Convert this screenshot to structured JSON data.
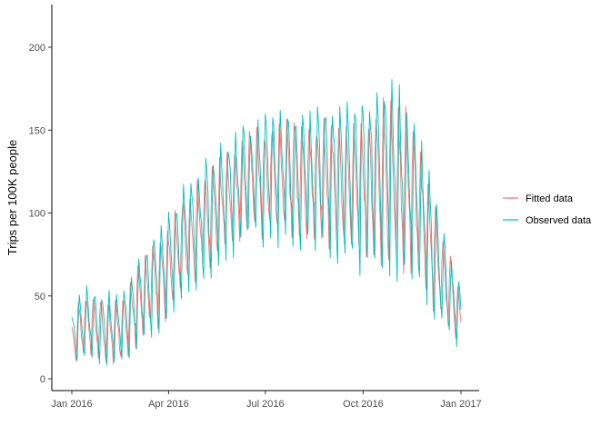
{
  "chart_data": {
    "type": "line",
    "title": "",
    "xlabel": "",
    "ylabel": "Trips per 100K people",
    "x_range": [
      "2016-01-01",
      "2017-01-01"
    ],
    "ylim": [
      -10,
      225
    ],
    "y_ticks": [
      0,
      50,
      100,
      150,
      200
    ],
    "x_ticks": [
      {
        "date": "2016-01-01",
        "label": "Jan 2016"
      },
      {
        "date": "2016-04-01",
        "label": "Apr 2016"
      },
      {
        "date": "2016-07-01",
        "label": "Jul 2016"
      },
      {
        "date": "2016-10-01",
        "label": "Oct 2016"
      },
      {
        "date": "2017-01-01",
        "label": "Jan 2017"
      }
    ],
    "grid": false,
    "legend_position": "right",
    "series": [
      {
        "name": "Fitted data",
        "color": "#F8766D",
        "x": [
          "2016-01-01",
          "2016-01-15",
          "2016-02-01",
          "2016-02-15",
          "2016-03-01",
          "2016-03-15",
          "2016-04-01",
          "2016-04-15",
          "2016-05-01",
          "2016-05-15",
          "2016-06-01",
          "2016-06-15",
          "2016-07-01",
          "2016-07-15",
          "2016-08-01",
          "2016-08-15",
          "2016-09-01",
          "2016-09-15",
          "2016-10-01",
          "2016-10-15",
          "2016-11-01",
          "2016-11-15",
          "2016-12-01",
          "2016-12-15",
          "2017-01-01"
        ],
        "y": [
          22,
          34,
          28,
          30,
          42,
          55,
          65,
          82,
          92,
          100,
          110,
          118,
          120,
          122,
          118,
          120,
          118,
          115,
          118,
          118,
          120,
          112,
          85,
          60,
          35
        ],
        "amplitude": [
          18,
          18,
          20,
          20,
          25,
          28,
          30,
          30,
          32,
          32,
          32,
          32,
          35,
          35,
          38,
          38,
          40,
          40,
          42,
          50,
          55,
          48,
          40,
          28,
          18
        ]
      },
      {
        "name": "Observed data",
        "color": "#00BFC4",
        "x": [
          "2016-01-01",
          "2016-01-15",
          "2016-02-01",
          "2016-02-15",
          "2016-03-01",
          "2016-03-15",
          "2016-04-01",
          "2016-04-15",
          "2016-05-01",
          "2016-05-15",
          "2016-06-01",
          "2016-06-15",
          "2016-07-01",
          "2016-07-15",
          "2016-08-01",
          "2016-08-15",
          "2016-09-01",
          "2016-09-15",
          "2016-10-01",
          "2016-10-15",
          "2016-11-01",
          "2016-11-15",
          "2016-12-01",
          "2016-12-15",
          "2017-01-01"
        ],
        "y": [
          22,
          34,
          28,
          30,
          42,
          55,
          65,
          82,
          92,
          100,
          110,
          118,
          120,
          122,
          118,
          120,
          118,
          115,
          118,
          118,
          120,
          112,
          85,
          60,
          35
        ],
        "amplitude": [
          22,
          22,
          25,
          25,
          30,
          32,
          35,
          35,
          38,
          38,
          40,
          40,
          42,
          42,
          45,
          45,
          50,
          52,
          55,
          60,
          65,
          55,
          45,
          30,
          20
        ]
      }
    ]
  }
}
